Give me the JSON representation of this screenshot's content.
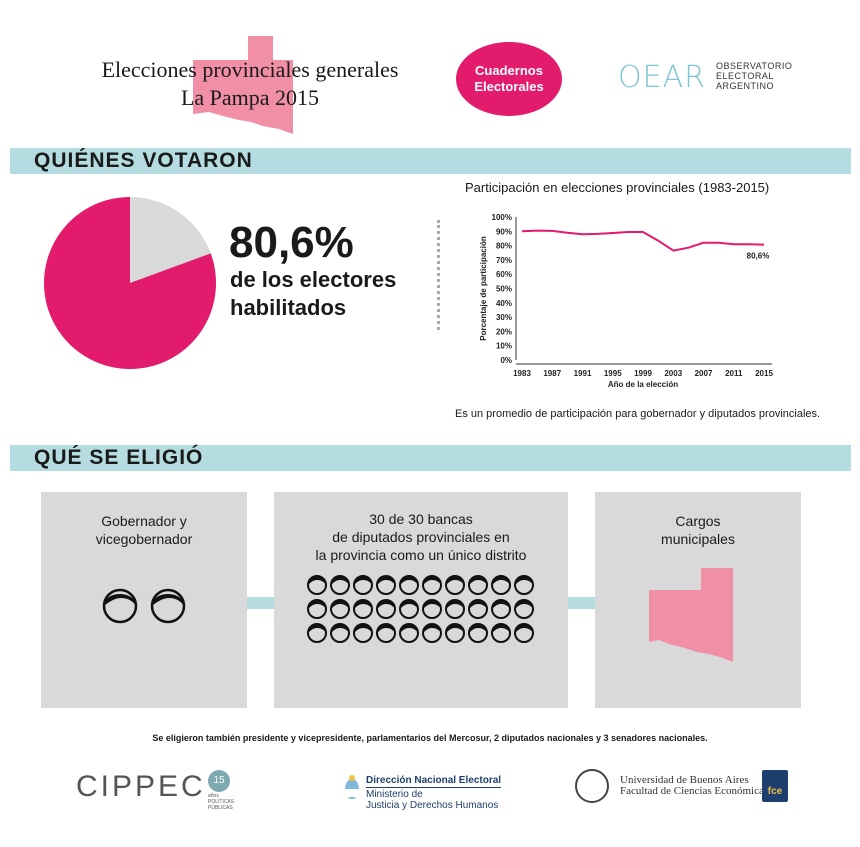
{
  "header": {
    "title_line1": "Elecciones provinciales generales",
    "title_line2": "La Pampa 2015",
    "badge_line1": "Cuadernos",
    "badge_line2": "Electorales",
    "oear_logo": "OEAR",
    "oear_line1": "OBSERVATORIO",
    "oear_line2": "ELECTORAL",
    "oear_line3": "ARGENTINO"
  },
  "section1": {
    "title": "QUIÉNES VOTARON",
    "participation_value": 80.6,
    "big_pct": "80,6%",
    "desc_line1": "de los electores",
    "desc_line2": "habilitados",
    "chart_title": "Participación en elecciones provinciales (1983-2015)",
    "note": "Es un promedio de participación para gobernador y diputados provinciales."
  },
  "chart_data": {
    "type": "line",
    "title": "Participación en elecciones provinciales (1983-2015)",
    "xlabel": "Año de la elección",
    "ylabel": "Porcentaje de participación",
    "x": [
      1983,
      1985,
      1987,
      1989,
      1991,
      1993,
      1995,
      1997,
      1999,
      2001,
      2003,
      2005,
      2007,
      2009,
      2011,
      2013,
      2015
    ],
    "values": [
      90,
      90.5,
      90.3,
      89,
      88,
      88.2,
      88.8,
      89.5,
      89.5,
      83.5,
      76.5,
      78.5,
      82,
      82,
      81,
      81,
      80.6
    ],
    "x_ticks": [
      "1983",
      "1987",
      "1991",
      "1995",
      "1999",
      "2003",
      "2007",
      "2011",
      "2015"
    ],
    "y_ticks": [
      "100%",
      "90%",
      "80%",
      "70%",
      "60%",
      "50%",
      "40%",
      "30%",
      "20%",
      "10%",
      "0%"
    ],
    "ylim": [
      0,
      100
    ],
    "end_label": "80,6%",
    "color": "#e31b6d"
  },
  "section2": {
    "title": "QUÉ SE ELIGIÓ",
    "box1_line1": "Gobernador y",
    "box1_line2": "vicegobernador",
    "box1_count": 2,
    "box2_line1": "30 de 30 bancas",
    "box2_line2": "de diputados provinciales en",
    "box2_line3": "la provincia como un único distrito",
    "box2_count": 30,
    "box3_line1": "Cargos",
    "box3_line2": "municipales"
  },
  "footnote": "Se eligieron también presidente y vicepresidente, parlamentarios del Mercosur, 2 diputados nacionales y 3 senadores nacionales.",
  "footer": {
    "cippec": "CIPPEC",
    "cippec_badge": "15",
    "cippec_small1": "años",
    "cippec_small2": "POLÍTICAS",
    "cippec_small3": "PÚBLICAS",
    "dne_title": "Dirección Nacional Electoral",
    "dne_line2": "Ministerio de",
    "dne_line3": "Justicia y Derechos Humanos",
    "uba_line1": "Universidad de Buenos Aires",
    "uba_line2": "Facultad de Ciencias Económicas",
    "fce": "fce"
  },
  "colors": {
    "accent": "#e31b6d",
    "section_bar": "#b5dce1",
    "box_bg": "#d9d9d9",
    "pampa": "#f08fa6"
  }
}
